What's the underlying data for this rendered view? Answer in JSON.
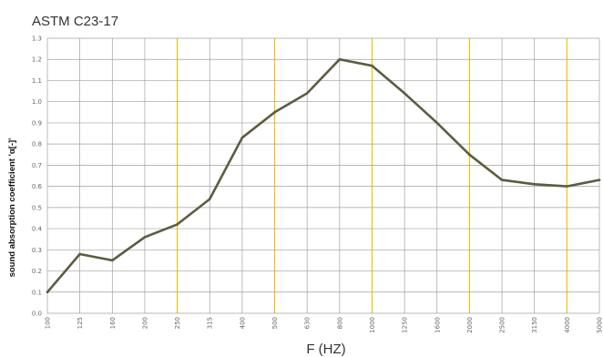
{
  "chart_data": {
    "type": "line",
    "title": "ASTM C23-17",
    "xlabel": "F (HZ)",
    "ylabel": "sound absorption coefficient 'α[-]'",
    "categories": [
      "100",
      "125",
      "160",
      "200",
      "250",
      "315",
      "400",
      "500",
      "630",
      "800",
      "1000",
      "1250",
      "1600",
      "2000",
      "2500",
      "3150",
      "4000",
      "5000"
    ],
    "highlight_categories": [
      "250",
      "500",
      "1000",
      "2000",
      "4000"
    ],
    "series": [
      {
        "values": [
          0.1,
          0.28,
          0.25,
          0.36,
          0.42,
          0.54,
          0.83,
          0.95,
          1.04,
          1.2,
          1.17,
          1.04,
          0.9,
          0.75,
          0.63,
          0.61,
          0.6,
          0.63
        ],
        "color": "#5d5c3f"
      }
    ],
    "ylim": [
      0,
      1.3
    ],
    "ytick_step": 0.1,
    "grid": true,
    "colors": {
      "grid": "#a0a0a0",
      "highlight_grid": "#f0c20a",
      "highlight_text": "#e3b400",
      "axis_text": "#666666"
    }
  }
}
